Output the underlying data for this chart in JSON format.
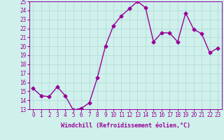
{
  "x": [
    0,
    1,
    2,
    3,
    4,
    5,
    6,
    7,
    8,
    9,
    10,
    11,
    12,
    13,
    14,
    15,
    16,
    17,
    18,
    19,
    20,
    21,
    22,
    23
  ],
  "y": [
    15.3,
    14.5,
    14.4,
    15.5,
    14.5,
    12.9,
    13.1,
    13.7,
    16.5,
    20.0,
    22.3,
    23.4,
    24.2,
    25.0,
    24.3,
    20.5,
    21.5,
    21.5,
    20.5,
    23.7,
    21.9,
    21.4,
    19.3,
    19.8
  ],
  "line_color": "#990099",
  "marker": "D",
  "marker_size": 2.5,
  "bg_color": "#cff0eb",
  "grid_color": "#b0d8d8",
  "xlabel": "Windchill (Refroidissement éolien,°C)",
  "xlabel_color": "#990099",
  "tick_color": "#990099",
  "ylim": [
    13,
    25
  ],
  "xlim": [
    -0.5,
    23.5
  ],
  "yticks": [
    13,
    14,
    15,
    16,
    17,
    18,
    19,
    20,
    21,
    22,
    23,
    24,
    25
  ],
  "xticks": [
    0,
    1,
    2,
    3,
    4,
    5,
    6,
    7,
    8,
    9,
    10,
    11,
    12,
    13,
    14,
    15,
    16,
    17,
    18,
    19,
    20,
    21,
    22,
    23
  ],
  "xtick_labels": [
    "0",
    "1",
    "2",
    "3",
    "4",
    "5",
    "6",
    "7",
    "8",
    "9",
    "10",
    "11",
    "12",
    "13",
    "14",
    "15",
    "16",
    "17",
    "18",
    "19",
    "20",
    "21",
    "22",
    "23"
  ],
  "line_width": 1.0,
  "tick_fontsize": 5.5,
  "xlabel_fontsize": 6.0
}
